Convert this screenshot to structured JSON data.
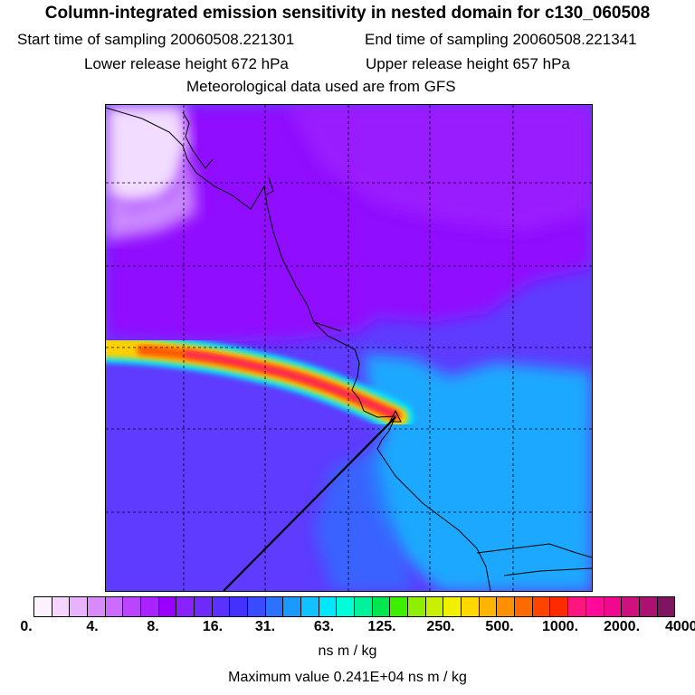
{
  "header": {
    "title": "Column-integrated emission sensitivity in nested domain for c130_060508",
    "start_label": "Start time of sampling 20060508.221301",
    "end_label": "End time of sampling 20060508.221341",
    "lower_label": "Lower release height  672 hPa",
    "upper_label": "Upper release height  657 hPa",
    "met_label": "Meteorological data used are from GFS"
  },
  "colorbar": {
    "tick_labels": [
      "0.",
      "4.",
      "8.",
      "16.",
      "31.",
      "63.",
      "125.",
      "250.",
      "500.",
      "1000.",
      "2000.",
      "4000."
    ],
    "colors": [
      "#fdf2ff",
      "#f6d6ff",
      "#e9b2ff",
      "#d98aff",
      "#cc6bff",
      "#bb44ff",
      "#aa22ff",
      "#9900ff",
      "#8a22ff",
      "#6f2bff",
      "#5a31ff",
      "#4430ff",
      "#3a4cff",
      "#2b73ff",
      "#1a99ff",
      "#10c2ff",
      "#00e6ff",
      "#00ffd8",
      "#00f29a",
      "#00e64e",
      "#3cf000",
      "#8ef000",
      "#c8f000",
      "#f0f000",
      "#ffd900",
      "#ffb400",
      "#ff9000",
      "#ff6a00",
      "#ff4400",
      "#ff2a00",
      "#ff1580",
      "#ff0a9a",
      "#f0088f",
      "#d0107f",
      "#aa1170",
      "#7f1460"
    ],
    "units": "ns m / kg",
    "max_label": "Maximum value  0.241E+04 ns m / kg"
  },
  "map": {
    "colors": {
      "background": "#5e3bff",
      "purple_region": "#9010ff",
      "white_region": "#f2dcff",
      "light_blue": "#1aa8ff",
      "plume_outer": "#00e6ff",
      "plume_mid": "#ffb400",
      "plume_core": "#ff1f3a"
    }
  }
}
